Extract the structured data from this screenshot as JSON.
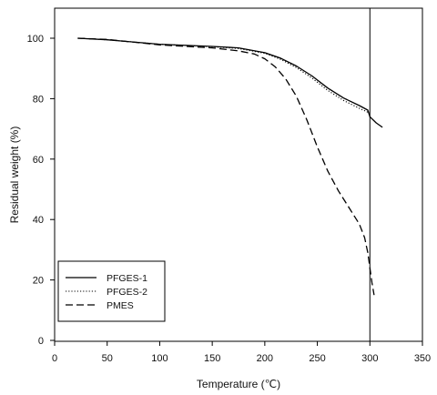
{
  "chart_data": {
    "type": "line",
    "title": "",
    "xlabel": "Temperature (℃)",
    "ylabel": "Residual weight (%)",
    "xlim": [
      0,
      350
    ],
    "ylim": [
      0,
      110
    ],
    "xticks": [
      0,
      50,
      100,
      150,
      200,
      250,
      300,
      350
    ],
    "yticks": [
      0,
      20,
      40,
      60,
      80,
      100
    ],
    "grid": false,
    "legend_position": "bottom-left",
    "reference_line_x": 300,
    "series": [
      {
        "name": "PFGES-1",
        "style": "solid",
        "x": [
          22,
          50,
          100,
          150,
          175,
          200,
          215,
          230,
          245,
          260,
          275,
          290,
          298,
          300,
          306,
          312
        ],
        "y": [
          100,
          99.5,
          98,
          97.3,
          96.8,
          95.2,
          93.4,
          90.8,
          87.5,
          83.5,
          80.2,
          77.7,
          76.2,
          74,
          72,
          70.5
        ]
      },
      {
        "name": "PFGES-2",
        "style": "dotted",
        "x": [
          22,
          50,
          100,
          150,
          175,
          200,
          215,
          230,
          245,
          260,
          275,
          290,
          298
        ],
        "y": [
          100,
          99.5,
          98,
          97.2,
          96.6,
          95,
          93,
          90.3,
          86.8,
          82.7,
          79.4,
          76.8,
          75.5
        ]
      },
      {
        "name": "PMES",
        "style": "dashed",
        "x": [
          22,
          50,
          100,
          150,
          175,
          190,
          200,
          210,
          220,
          230,
          240,
          250,
          260,
          270,
          280,
          290,
          295,
          298,
          300,
          302,
          304
        ],
        "y": [
          100,
          99.6,
          97.8,
          96.8,
          95.8,
          94.8,
          93.2,
          90.5,
          86.5,
          80.8,
          73,
          64,
          56,
          49.5,
          44,
          38.5,
          34,
          29,
          24,
          19,
          15
        ]
      }
    ]
  }
}
